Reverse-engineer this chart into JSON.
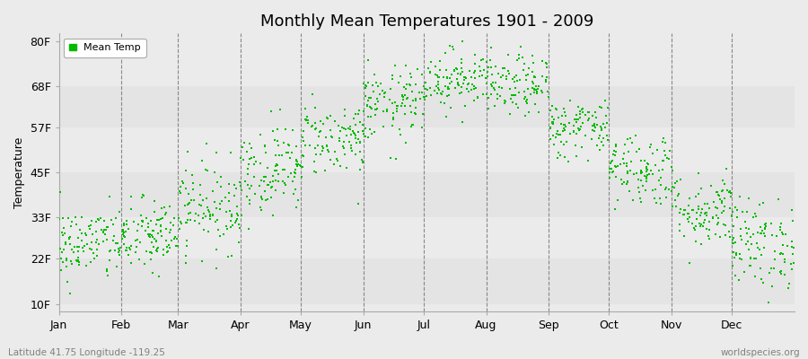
{
  "title": "Monthly Mean Temperatures 1901 - 2009",
  "ylabel": "Temperature",
  "xlabel_bottom_left": "Latitude 41.75 Longitude -119.25",
  "xlabel_bottom_right": "worldspecies.org",
  "legend_label": "Mean Temp",
  "dot_color": "#00bb00",
  "background_color": "#ebebeb",
  "plot_bg_color": "#ebebeb",
  "ytick_labels": [
    "10F",
    "22F",
    "33F",
    "45F",
    "57F",
    "68F",
    "80F"
  ],
  "ytick_values": [
    10,
    22,
    33,
    45,
    57,
    68,
    80
  ],
  "ylim": [
    8,
    82
  ],
  "months": [
    "Jan",
    "Feb",
    "Mar",
    "Apr",
    "May",
    "Jun",
    "Jul",
    "Aug",
    "Sep",
    "Oct",
    "Nov",
    "Dec"
  ],
  "month_days": [
    31,
    28,
    31,
    30,
    31,
    30,
    31,
    31,
    30,
    31,
    30,
    31
  ],
  "month_means": [
    26,
    28,
    36,
    46,
    54,
    63,
    70,
    68,
    57,
    46,
    35,
    26
  ],
  "month_stds": [
    5,
    5,
    6,
    6,
    5,
    5,
    4,
    4,
    4,
    5,
    5,
    6
  ],
  "n_years": 109,
  "seed": 42,
  "dot_size": 4,
  "band_colors": [
    "#e4e4e4",
    "#ebebeb"
  ]
}
